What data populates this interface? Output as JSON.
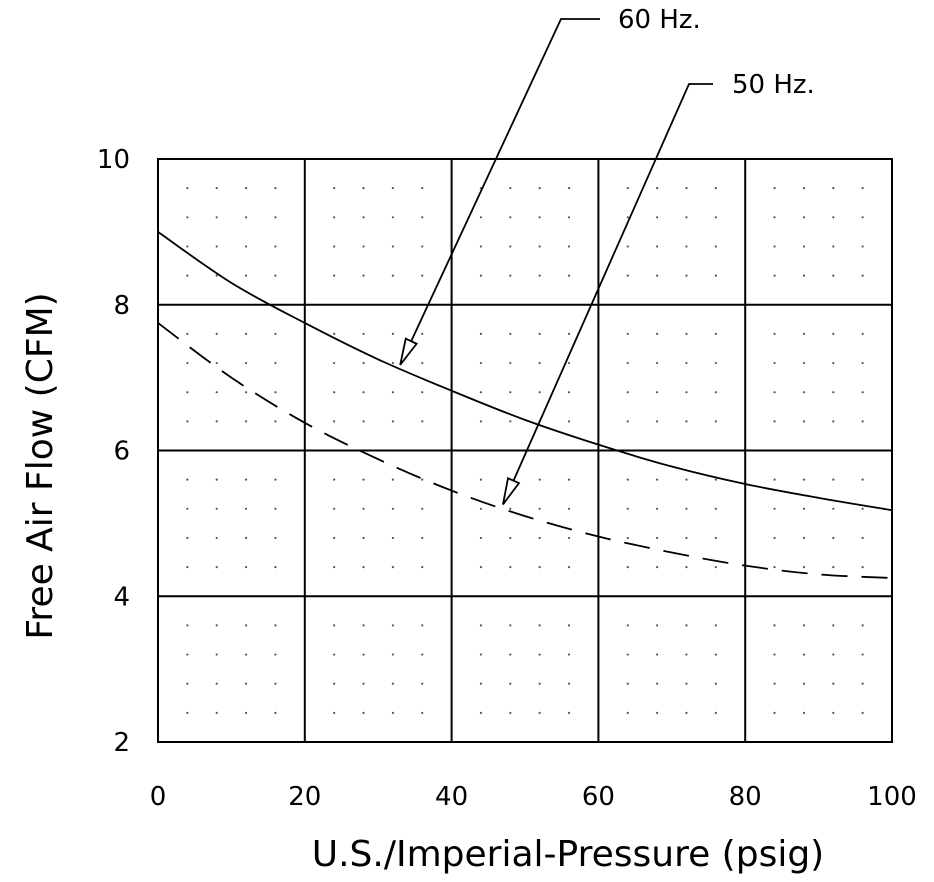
{
  "chart_data": {
    "type": "line",
    "xlabel": "U.S./Imperial-Pressure (psig)",
    "ylabel": "Free Air Flow (CFM)",
    "xlim": [
      0,
      100
    ],
    "ylim": [
      2,
      10
    ],
    "x_ticks": [
      0,
      20,
      40,
      60,
      80,
      100
    ],
    "y_ticks": [
      2,
      4,
      6,
      8,
      10
    ],
    "x_tick_labels": [
      "0",
      "20",
      "40",
      "60",
      "80",
      "100"
    ],
    "y_tick_labels": [
      "2",
      "4",
      "6",
      "8",
      "10"
    ],
    "grid": true,
    "minor_grid": "dotted",
    "series": [
      {
        "name": "60 Hz.",
        "style": "solid",
        "x": [
          0,
          10,
          20,
          30,
          40,
          50,
          60,
          70,
          80,
          90,
          100
        ],
        "y": [
          9.0,
          8.3,
          7.75,
          7.25,
          6.82,
          6.42,
          6.08,
          5.78,
          5.54,
          5.35,
          5.18
        ]
      },
      {
        "name": "50 Hz.",
        "style": "dashed",
        "x": [
          0,
          10,
          20,
          30,
          40,
          50,
          60,
          70,
          80,
          90,
          100
        ],
        "y": [
          7.75,
          7.0,
          6.38,
          5.88,
          5.45,
          5.1,
          4.82,
          4.6,
          4.42,
          4.3,
          4.25
        ]
      }
    ]
  }
}
